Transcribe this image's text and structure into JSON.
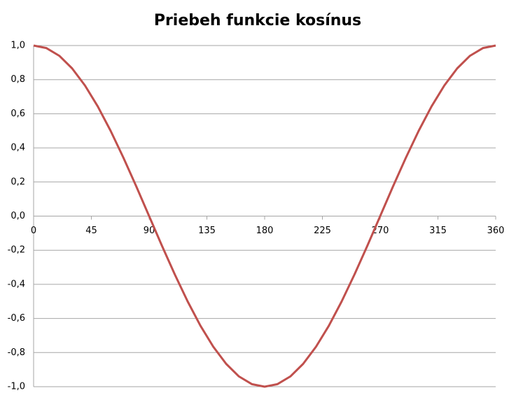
{
  "chart_data": {
    "type": "line",
    "title": "Priebeh funkcie kosínus",
    "x": [
      0,
      10,
      20,
      30,
      40,
      50,
      60,
      70,
      80,
      90,
      100,
      110,
      120,
      130,
      140,
      150,
      160,
      170,
      180,
      190,
      200,
      210,
      220,
      230,
      240,
      250,
      260,
      270,
      280,
      290,
      300,
      310,
      320,
      330,
      340,
      350,
      360
    ],
    "values": [
      1,
      0.985,
      0.94,
      0.866,
      0.766,
      0.643,
      0.5,
      0.342,
      0.174,
      0,
      -0.174,
      -0.342,
      -0.5,
      -0.643,
      -0.766,
      -0.866,
      -0.94,
      -0.985,
      -1,
      -0.985,
      -0.94,
      -0.866,
      -0.766,
      -0.643,
      -0.5,
      -0.342,
      -0.174,
      0,
      0.174,
      0.342,
      0.5,
      0.643,
      0.766,
      0.866,
      0.94,
      0.985,
      1
    ],
    "color": "#c0504d",
    "xlim": [
      0,
      360
    ],
    "xticks": [
      0,
      45,
      90,
      135,
      180,
      225,
      270,
      315,
      360
    ],
    "ylim": [
      -1,
      1
    ],
    "yticks": [
      {
        "value": -1,
        "label": "-1,0"
      },
      {
        "value": -0.8,
        "label": "-0,8"
      },
      {
        "value": -0.6,
        "label": "-0,6"
      },
      {
        "value": -0.4,
        "label": "-0,4"
      },
      {
        "value": -0.2,
        "label": "-0,2"
      },
      {
        "value": 0,
        "label": "0,0"
      },
      {
        "value": 0.2,
        "label": "0,2"
      },
      {
        "value": 0.4,
        "label": "0,4"
      },
      {
        "value": 0.6,
        "label": "0,6"
      },
      {
        "value": 0.8,
        "label": "0,8"
      },
      {
        "value": 1,
        "label": "1,0"
      }
    ],
    "grid": true
  }
}
